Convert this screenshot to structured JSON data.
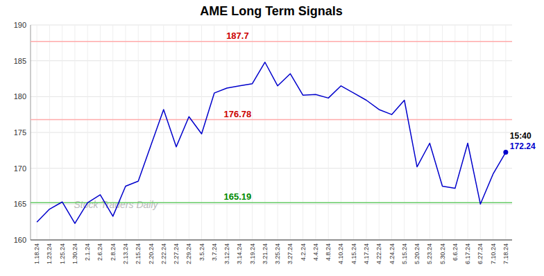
{
  "chart_data": {
    "type": "line",
    "title": "AME Long Term Signals",
    "categories": [
      "1.18.24",
      "1.23.24",
      "1.25.24",
      "1.30.24",
      "2.1.24",
      "2.6.24",
      "2.8.24",
      "2.13.24",
      "2.15.24",
      "2.20.24",
      "2.22.24",
      "2.27.24",
      "2.29.24",
      "3.5.24",
      "3.7.24",
      "3.12.24",
      "3.14.24",
      "3.19.24",
      "3.21.24",
      "3.25.24",
      "3.27.24",
      "4.2.24",
      "4.4.24",
      "4.8.24",
      "4.10.24",
      "4.15.24",
      "4.17.24",
      "4.22.24",
      "4.24.24",
      "5.15.24",
      "5.20.24",
      "5.23.24",
      "5.30.24",
      "6.6.24",
      "6.17.24",
      "6.27.24",
      "7.10.24",
      "7.18.24"
    ],
    "values": [
      162.5,
      164.3,
      165.3,
      162.3,
      165.2,
      166.3,
      163.3,
      167.5,
      168.2,
      173.2,
      178.2,
      173.0,
      177.2,
      174.8,
      180.5,
      181.2,
      181.5,
      181.8,
      184.8,
      181.5,
      183.2,
      180.2,
      180.3,
      179.8,
      181.5,
      180.5,
      179.5,
      178.2,
      177.5,
      179.5,
      170.2,
      173.5,
      167.5,
      167.2,
      173.5,
      165.0,
      169.2,
      172.24
    ],
    "color": "#0000cc",
    "reference_lines": [
      {
        "value": 187.7,
        "color": "#ffaaaa",
        "label_color": "#cc0000"
      },
      {
        "value": 176.78,
        "color": "#ffaaaa",
        "label_color": "#cc0000"
      },
      {
        "value": 165.19,
        "color": "#66cc66",
        "label_color": "#008800"
      }
    ],
    "annotations": [
      {
        "text": "15:40",
        "color": "#000000"
      }
    ],
    "watermark": "Stock Traders Daily",
    "watermark_color": "#bbbbbb",
    "ylim": [
      160,
      190
    ],
    "yticks": [
      160,
      165,
      170,
      175,
      180,
      185,
      190
    ],
    "grid": true
  }
}
